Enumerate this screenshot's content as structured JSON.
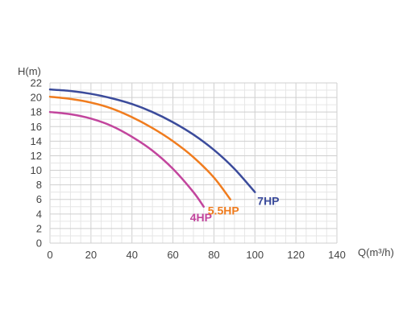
{
  "chart_data": {
    "type": "line",
    "title": "",
    "xlabel": "Q(m³/h)",
    "ylabel": "H(m)",
    "xlim": [
      0,
      140
    ],
    "ylim": [
      0,
      22
    ],
    "xticks": [
      0,
      20,
      40,
      60,
      80,
      100,
      120,
      140
    ],
    "yticks": [
      0,
      2,
      4,
      6,
      8,
      10,
      12,
      14,
      16,
      18,
      20,
      22
    ],
    "grid": true,
    "legend": "inline labels at curve ends",
    "series": [
      {
        "name": "4HP",
        "color": "#c2459d",
        "x": [
          0,
          10,
          20,
          30,
          40,
          50,
          60,
          70,
          75
        ],
        "y": [
          18,
          17.7,
          17.1,
          16.1,
          14.6,
          12.7,
          10.2,
          7.0,
          5.0
        ]
      },
      {
        "name": "5.5HP",
        "color": "#f07c1e",
        "x": [
          0,
          10,
          20,
          30,
          40,
          50,
          60,
          70,
          80,
          88
        ],
        "y": [
          20.1,
          19.8,
          19.3,
          18.5,
          17.3,
          15.8,
          14.0,
          11.8,
          9.0,
          6.0
        ]
      },
      {
        "name": "7HP",
        "color": "#3b4b9b",
        "x": [
          0,
          10,
          20,
          30,
          40,
          50,
          60,
          70,
          80,
          90,
          100
        ],
        "y": [
          21.1,
          20.9,
          20.5,
          19.9,
          19.1,
          18.0,
          16.6,
          14.9,
          12.8,
          10.2,
          7.0
        ]
      }
    ]
  }
}
